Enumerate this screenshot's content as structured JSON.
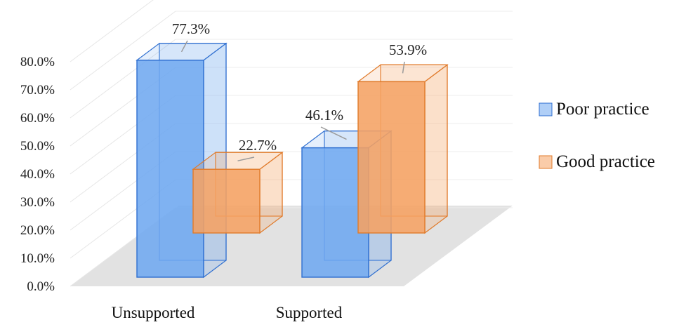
{
  "chart_data": {
    "type": "bar",
    "categories": [
      "Unsupported",
      "Supported"
    ],
    "series": [
      {
        "name": "Poor practice",
        "values": [
          77.3,
          46.1
        ],
        "value_labels": [
          "77.3%",
          "46.1%"
        ],
        "color": "#6fa8f0",
        "edge": "#2f6fd0"
      },
      {
        "name": "Good practice",
        "values": [
          22.7,
          53.9
        ],
        "value_labels": [
          "22.7%",
          "53.9%"
        ],
        "color": "#f5a263",
        "edge": "#e07a2a"
      }
    ],
    "y_ticks": [
      "0.0%",
      "10.0%",
      "20.0%",
      "30.0%",
      "40.0%",
      "50.0%",
      "60.0%",
      "70.0%",
      "80.0%"
    ],
    "ylim": [
      0,
      80
    ],
    "title": "",
    "xlabel": "",
    "ylabel": "",
    "grid": true,
    "legend_position": "right",
    "style": "3d-column"
  }
}
